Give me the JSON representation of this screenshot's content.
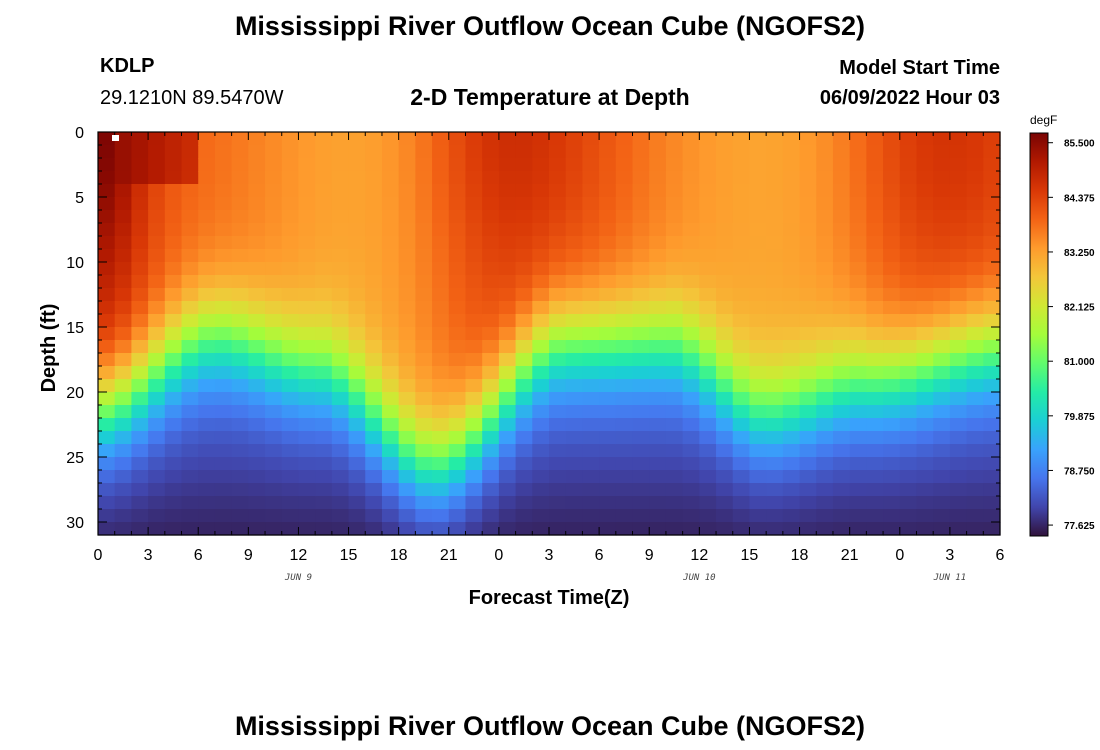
{
  "page": {
    "title_top": "Mississippi River Outflow Ocean Cube (NGOFS2)",
    "title_bottom": "Mississippi River Outflow Ocean Cube (NGOFS2)",
    "station_id": "KDLP",
    "station_coords": "29.1210N  89.5470W",
    "plot_title": "2-D Temperature at Depth",
    "model_start_label": "Model Start Time",
    "model_start_value": "06/09/2022 Hour 03"
  },
  "chart_data": {
    "type": "heatmap",
    "title": "2-D Temperature at Depth",
    "xlabel": "Forecast Time(Z)",
    "ylabel": "Depth (ft)",
    "x_tick_labels": [
      "0",
      "3",
      "6",
      "9",
      "12",
      "15",
      "18",
      "21",
      "0",
      "3",
      "6",
      "9",
      "12",
      "15",
      "18",
      "21",
      "0",
      "3",
      "6"
    ],
    "x_hours_range": [
      0,
      54
    ],
    "date_labels": [
      {
        "text": "JUN 9",
        "hour": 12
      },
      {
        "text": "JUN 10",
        "hour": 36
      },
      {
        "text": "JUN 11",
        "hour": 51
      }
    ],
    "y_tick_labels": [
      "0",
      "5",
      "10",
      "15",
      "20",
      "25",
      "30"
    ],
    "y_range_ft": [
      0,
      31
    ],
    "colorbar": {
      "unit": "degF",
      "min": 77.4,
      "max": 85.7,
      "tick_labels": [
        "85.500",
        "84.375",
        "83.250",
        "82.125",
        "81.000",
        "79.875",
        "78.750",
        "77.625"
      ],
      "colors": [
        "#30123b",
        "#4145ab",
        "#4675ed",
        "#39a2fc",
        "#1bcfd4",
        "#24eca6",
        "#61fc6c",
        "#a4fc3b",
        "#d1e834",
        "#f3c63a",
        "#fe9b2d",
        "#f36315",
        "#d93806",
        "#b11901",
        "#7a0403"
      ]
    },
    "field_model": {
      "x_steps": 54,
      "y_steps": 31,
      "surface_hot_hours": [
        [
          0,
          3,
          85.7
        ],
        [
          25,
          5,
          84.7
        ],
        [
          51,
          5,
          84.6
        ]
      ],
      "mixed_layer_depth_ft": [
        [
          0,
          21
        ],
        [
          7,
          15.5
        ],
        [
          13,
          18
        ],
        [
          20,
          25.5
        ],
        [
          28,
          16
        ],
        [
          34,
          16
        ],
        [
          40,
          21.5
        ],
        [
          46,
          19
        ],
        [
          54,
          16.5
        ]
      ],
      "bottom_temp_degF": 78.0
    }
  }
}
